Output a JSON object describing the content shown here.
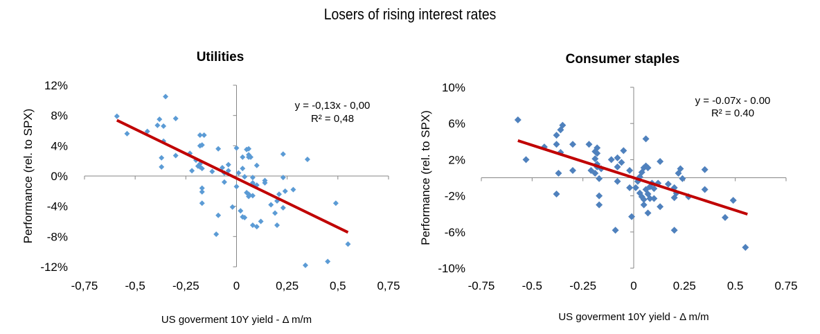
{
  "page_title": "Losers of rising interest rates",
  "colors": {
    "point_left": "#5b9bd5",
    "point_right": "#4f81bd",
    "trendline": "#c00000",
    "axis": "#868686"
  },
  "chart_data": [
    {
      "type": "scatter",
      "title": "Utilities",
      "xlabel": "US goverment 10Y yield - Δ m/m",
      "ylabel": "Performance (rel. to SPX)",
      "xlim": [
        -0.75,
        0.75
      ],
      "ylim": [
        -0.12,
        0.12
      ],
      "x_ticks": [
        -0.75,
        -0.5,
        -0.25,
        0,
        0.25,
        0.5,
        0.75
      ],
      "x_tick_labels": [
        "-0,75",
        "-0,5",
        "-0,25",
        "0",
        "0,25",
        "0,5",
        "0,75"
      ],
      "y_ticks": [
        0.12,
        0.08,
        0.04,
        0,
        -0.04,
        -0.08,
        -0.12
      ],
      "y_tick_labels": [
        "12%",
        "8%",
        "4%",
        "0%",
        "-4%",
        "-8%",
        "-12%"
      ],
      "grid": false,
      "trendline": {
        "equation": "y = -0,13x - 0,00",
        "r_squared": "R² = 0,48",
        "slope": -0.13,
        "intercept": -0.003,
        "x_range": [
          -0.59,
          0.55
        ]
      },
      "points": [
        [
          -0.59,
          0.079
        ],
        [
          -0.54,
          0.056
        ],
        [
          -0.44,
          0.059
        ],
        [
          -0.39,
          0.067
        ],
        [
          -0.38,
          0.075
        ],
        [
          -0.36,
          0.066
        ],
        [
          -0.35,
          0.105
        ],
        [
          -0.36,
          0.046
        ],
        [
          -0.37,
          0.024
        ],
        [
          -0.37,
          0.012
        ],
        [
          -0.3,
          0.076
        ],
        [
          -0.3,
          0.027
        ],
        [
          -0.23,
          0.03
        ],
        [
          -0.22,
          0.007
        ],
        [
          -0.2,
          0.021
        ],
        [
          -0.19,
          0.013
        ],
        [
          -0.18,
          0.054
        ],
        [
          -0.16,
          0.054
        ],
        [
          -0.18,
          0.04
        ],
        [
          -0.17,
          0.041
        ],
        [
          -0.18,
          0.016
        ],
        [
          -0.17,
          0.01
        ],
        [
          -0.18,
          0.012
        ],
        [
          -0.17,
          -0.016
        ],
        [
          -0.17,
          -0.021
        ],
        [
          -0.17,
          -0.036
        ],
        [
          -0.12,
          0.006
        ],
        [
          -0.09,
          0.036
        ],
        [
          -0.07,
          0.011
        ],
        [
          -0.06,
          0.004
        ],
        [
          -0.04,
          0.015
        ],
        [
          -0.04,
          0.007
        ],
        [
          -0.06,
          -0.008
        ],
        [
          -0.09,
          -0.052
        ],
        [
          -0.1,
          -0.077
        ],
        [
          -0.02,
          -0.041
        ],
        [
          0.0,
          0.037
        ],
        [
          0.01,
          0.004
        ],
        [
          0.0,
          -0.014
        ],
        [
          0.03,
          0.025
        ],
        [
          0.03,
          0.01
        ],
        [
          0.04,
          -0.001
        ],
        [
          0.05,
          0.035
        ],
        [
          0.06,
          0.036
        ],
        [
          0.06,
          0.028
        ],
        [
          0.06,
          0.025
        ],
        [
          0.07,
          0.025
        ],
        [
          0.05,
          -0.022
        ],
        [
          0.06,
          -0.027
        ],
        [
          0.06,
          -0.024
        ],
        [
          0.08,
          -0.002
        ],
        [
          0.08,
          -0.009
        ],
        [
          0.08,
          -0.011
        ],
        [
          0.08,
          -0.026
        ],
        [
          0.1,
          0.014
        ],
        [
          0.1,
          -0.012
        ],
        [
          0.02,
          -0.046
        ],
        [
          0.03,
          -0.054
        ],
        [
          0.04,
          -0.055
        ],
        [
          0.08,
          -0.065
        ],
        [
          0.1,
          -0.067
        ],
        [
          0.12,
          -0.06
        ],
        [
          0.14,
          -0.006
        ],
        [
          0.14,
          -0.009
        ],
        [
          0.17,
          -0.038
        ],
        [
          0.19,
          -0.049
        ],
        [
          0.2,
          -0.033
        ],
        [
          0.2,
          -0.065
        ],
        [
          0.21,
          -0.024
        ],
        [
          0.23,
          0.029
        ],
        [
          0.23,
          -0.002
        ],
        [
          0.24,
          -0.02
        ],
        [
          0.23,
          -0.042
        ],
        [
          0.28,
          -0.018
        ],
        [
          0.35,
          0.022
        ],
        [
          0.34,
          -0.118
        ],
        [
          0.45,
          -0.113
        ],
        [
          0.49,
          -0.036
        ],
        [
          0.55,
          -0.09
        ]
      ]
    },
    {
      "type": "scatter",
      "title": "Consumer staples",
      "xlabel": "US goverment 10Y yield - Δ m/m",
      "ylabel": "Performance (rel. to SPX)",
      "xlim": [
        -0.75,
        0.75
      ],
      "ylim": [
        -0.1,
        0.1
      ],
      "x_ticks": [
        -0.75,
        -0.5,
        -0.25,
        0,
        0.25,
        0.5,
        0.75
      ],
      "x_tick_labels": [
        "-0.75",
        "-0.5",
        "-0.25",
        "0",
        "0.25",
        "0.5",
        "0.75"
      ],
      "y_ticks": [
        0.1,
        0.06,
        0.02,
        -0.02,
        -0.06,
        -0.1
      ],
      "y_tick_labels": [
        "10%",
        "6%",
        "2%",
        "-2%",
        "-6%",
        "-10%"
      ],
      "grid": false,
      "trendline": {
        "equation": "y = -0.07x - 0.00",
        "r_squared": "R² = 0.40",
        "slope": -0.072,
        "intercept": 0.0,
        "x_range": [
          -0.57,
          0.56
        ]
      },
      "points": [
        [
          -0.57,
          0.064
        ],
        [
          -0.53,
          0.02
        ],
        [
          -0.44,
          0.034
        ],
        [
          -0.38,
          0.047
        ],
        [
          -0.36,
          0.053
        ],
        [
          -0.35,
          0.058
        ],
        [
          -0.38,
          0.037
        ],
        [
          -0.36,
          0.028
        ],
        [
          -0.37,
          0.005
        ],
        [
          -0.38,
          -0.018
        ],
        [
          -0.3,
          0.037
        ],
        [
          -0.3,
          0.008
        ],
        [
          -0.22,
          0.037
        ],
        [
          -0.21,
          0.008
        ],
        [
          -0.19,
          0.029
        ],
        [
          -0.18,
          0.033
        ],
        [
          -0.18,
          0.027
        ],
        [
          -0.19,
          0.021
        ],
        [
          -0.18,
          0.015
        ],
        [
          -0.19,
          0.005
        ],
        [
          -0.18,
          0.012
        ],
        [
          -0.16,
          0.01
        ],
        [
          -0.17,
          -0.001
        ],
        [
          -0.17,
          -0.02
        ],
        [
          -0.17,
          -0.03
        ],
        [
          -0.11,
          0.02
        ],
        [
          -0.08,
          0.022
        ],
        [
          -0.06,
          0.017
        ],
        [
          -0.05,
          0.03
        ],
        [
          -0.08,
          0.012
        ],
        [
          -0.02,
          0.008
        ],
        [
          -0.08,
          -0.004
        ],
        [
          -0.02,
          -0.011
        ],
        [
          -0.01,
          -0.043
        ],
        [
          -0.09,
          -0.058
        ],
        [
          0.01,
          -0.011
        ],
        [
          0.02,
          -0.004
        ],
        [
          0.03,
          0.001
        ],
        [
          0.04,
          0.006
        ],
        [
          0.05,
          0.011
        ],
        [
          0.06,
          0.013
        ],
        [
          0.07,
          0.011
        ],
        [
          0.06,
          0.043
        ],
        [
          0.03,
          -0.017
        ],
        [
          0.04,
          -0.021
        ],
        [
          0.05,
          -0.024
        ],
        [
          0.06,
          -0.013
        ],
        [
          0.07,
          -0.018
        ],
        [
          0.08,
          -0.01
        ],
        [
          0.08,
          -0.023
        ],
        [
          0.09,
          -0.006
        ],
        [
          0.1,
          -0.012
        ],
        [
          0.1,
          -0.023
        ],
        [
          0.12,
          -0.006
        ],
        [
          0.05,
          -0.03
        ],
        [
          0.07,
          -0.039
        ],
        [
          0.13,
          -0.032
        ],
        [
          0.13,
          0.018
        ],
        [
          0.17,
          -0.007
        ],
        [
          0.2,
          -0.011
        ],
        [
          0.21,
          -0.017
        ],
        [
          0.2,
          -0.022
        ],
        [
          0.2,
          -0.058
        ],
        [
          0.22,
          0.005
        ],
        [
          0.23,
          0.01
        ],
        [
          0.24,
          -0.001
        ],
        [
          0.27,
          -0.021
        ],
        [
          0.35,
          0.009
        ],
        [
          0.35,
          -0.013
        ],
        [
          0.45,
          -0.044
        ],
        [
          0.49,
          -0.025
        ],
        [
          0.55,
          -0.077
        ]
      ]
    }
  ]
}
